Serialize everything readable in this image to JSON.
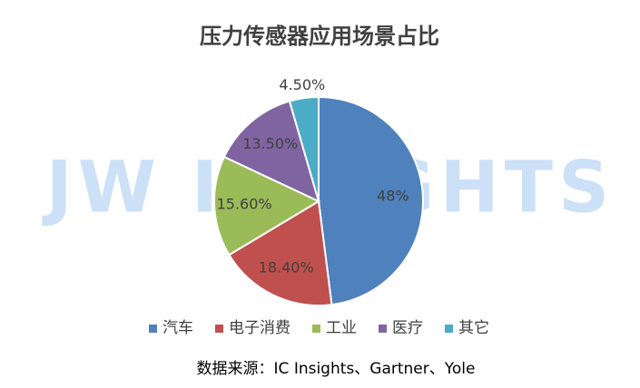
{
  "chart_data": {
    "type": "pie",
    "title": "压力传感器应用场景占比",
    "watermark": "JW INSIGHTS",
    "categories": [
      "汽车",
      "电子消费",
      "工业",
      "医疗",
      "其它"
    ],
    "values": [
      48,
      18.4,
      15.6,
      13.5,
      4.5
    ],
    "value_labels": [
      "48%",
      "18.40%",
      "15.60%",
      "13.50%",
      "4.50%"
    ],
    "colors": [
      "#4f81bd",
      "#c0504d",
      "#9bbb59",
      "#8064a2",
      "#4bacc6"
    ],
    "legend": "bottom",
    "source": "数据来源：IC Insights、Gartner、Yole"
  }
}
